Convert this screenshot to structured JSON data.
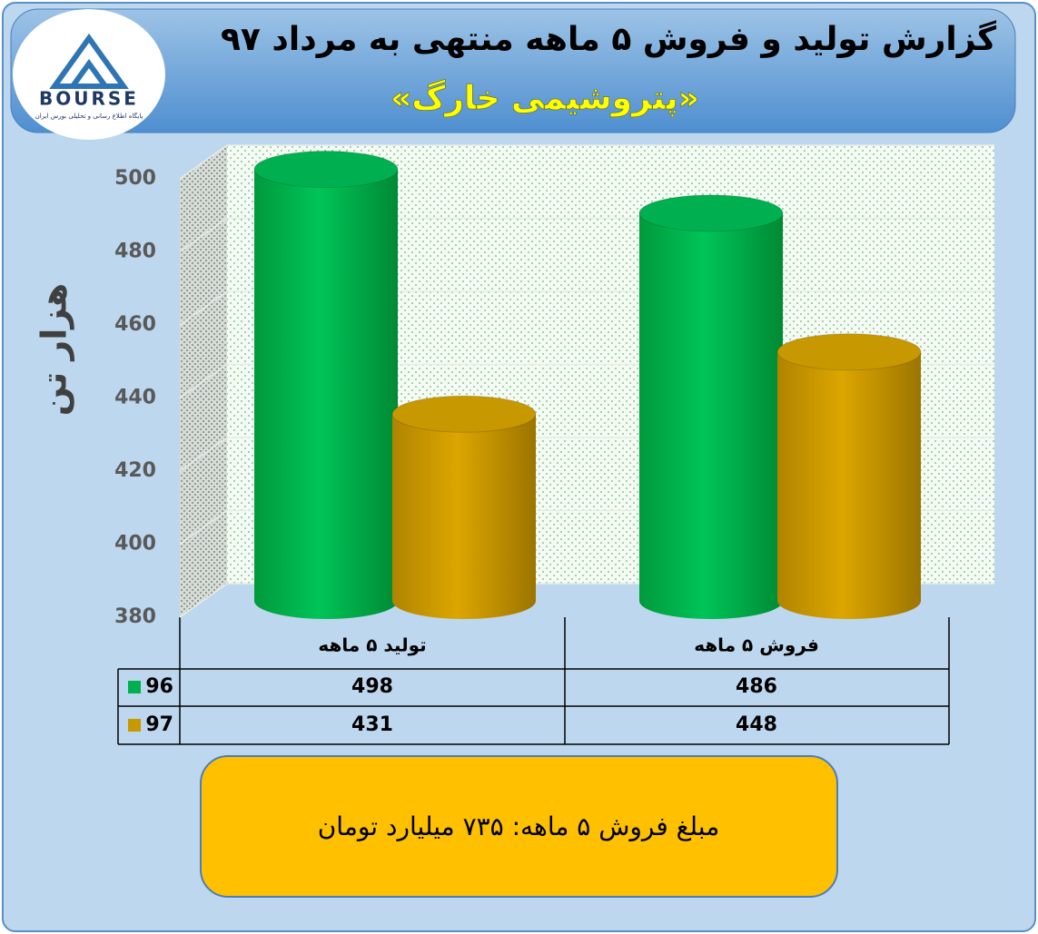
{
  "logo": {
    "name": "BOURSE",
    "tagline": "پایگاه اطلاع رسانی و تحلیلی بورس ایران"
  },
  "chart_data": {
    "type": "bar",
    "title": "گزارش تولید و فروش ۵ ماهه منتهی به مرداد ۹۷",
    "subtitle": "«پتروشیمی خارگ»",
    "y_label": "هزار تن",
    "categories": [
      "تولید ۵ ماهه",
      "فروش ۵ ماهه"
    ],
    "series": [
      {
        "name": "96",
        "color": "#00b050",
        "values": [
          498,
          486
        ]
      },
      {
        "name": "97",
        "color": "#c89800",
        "values": [
          431,
          448
        ]
      }
    ],
    "ylim": [
      380,
      500
    ],
    "yticks": [
      380,
      400,
      420,
      440,
      460,
      480,
      500
    ],
    "grid": true
  },
  "note": "مبلغ فروش ۵ ماهه: ۷۳۵ میلیارد تومان"
}
